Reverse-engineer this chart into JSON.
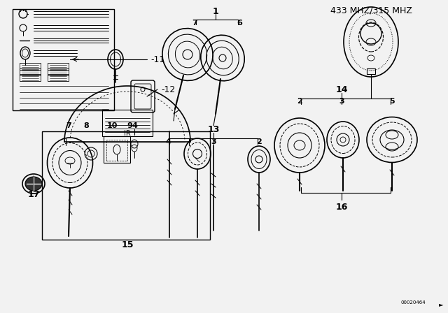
{
  "title": "433 MHZ/315 MHZ",
  "bg_color": "#f2f2f2",
  "line_color": "#000000",
  "diagram_color": "#000000",
  "note_text": "00020464",
  "figsize": [
    6.4,
    4.48
  ],
  "dpi": 100
}
